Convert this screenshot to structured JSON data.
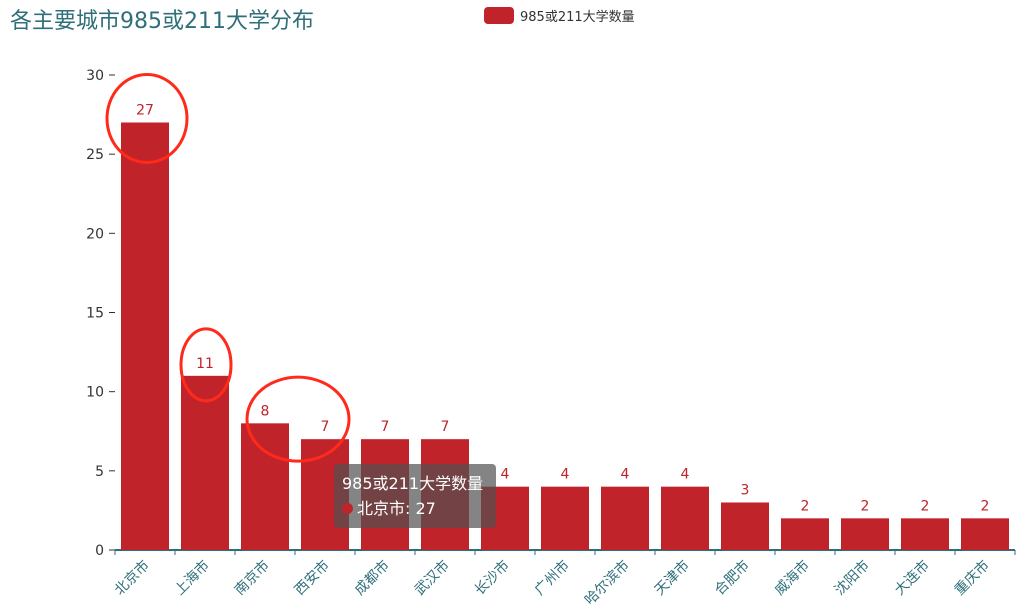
{
  "title": "各主要城市985或211大学分布",
  "legend": {
    "label": "985或211大学数量",
    "color": "#c1232b"
  },
  "tooltip": {
    "series": "985或211大学数量",
    "item": "北京市: 27"
  },
  "chart_data": {
    "type": "bar",
    "title": "各主要城市985或211大学分布",
    "xlabel": "",
    "ylabel": "",
    "ylim": [
      0,
      30
    ],
    "yticks": [
      0,
      5,
      10,
      15,
      20,
      25,
      30
    ],
    "categories": [
      "北京市",
      "上海市",
      "南京市",
      "西安市",
      "成都市",
      "武汉市",
      "长沙市",
      "广州市",
      "哈尔滨市",
      "天津市",
      "合肥市",
      "威海市",
      "沈阳市",
      "大连市",
      "重庆市"
    ],
    "series": [
      {
        "name": "985或211大学数量",
        "values": [
          27,
          11,
          8,
          7,
          7,
          7,
          4,
          4,
          4,
          4,
          3,
          2,
          2,
          2,
          2
        ],
        "color": "#c1232b"
      }
    ],
    "legend_position": "top-center",
    "grid": false,
    "annotations": {
      "circled_categories": [
        "北京市",
        "上海市",
        "南京市",
        "西安市"
      ],
      "circle_color": "#ff2a1a"
    }
  }
}
